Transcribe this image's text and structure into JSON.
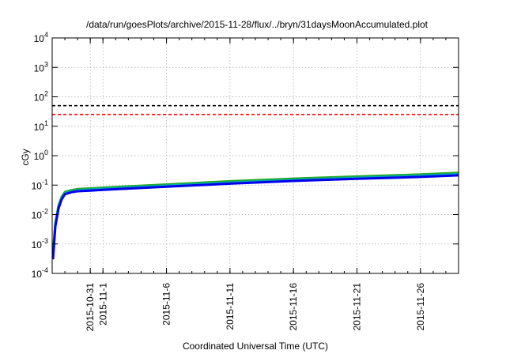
{
  "chart_data": {
    "type": "line",
    "title": "/data/run/goesPlots/archive/2015-11-28/flux/../bryn/31daysMoonAccumulated.plot",
    "xlabel": "Coordinated Universal Time (UTC)",
    "ylabel": "cGy",
    "yscale": "log",
    "ylim": [
      0.0001,
      10000
    ],
    "xlim": [
      "2015-10-28",
      "2015-11-29"
    ],
    "grid": true,
    "y_ticks": [
      {
        "value": 0.0001,
        "base": "10",
        "exp": "-4"
      },
      {
        "value": 0.001,
        "base": "10",
        "exp": "-3"
      },
      {
        "value": 0.01,
        "base": "10",
        "exp": "-2"
      },
      {
        "value": 0.1,
        "base": "10",
        "exp": "-1"
      },
      {
        "value": 1,
        "base": "10",
        "exp": "0"
      },
      {
        "value": 10,
        "base": "10",
        "exp": "1"
      },
      {
        "value": 100,
        "base": "10",
        "exp": "2"
      },
      {
        "value": 1000,
        "base": "10",
        "exp": "3"
      },
      {
        "value": 10000,
        "base": "10",
        "exp": "4"
      }
    ],
    "x_ticks": [
      "2015-10-31",
      "2015-11-1",
      "2015-11-6",
      "2015-11-11",
      "2015-11-16",
      "2015-11-21",
      "2015-11-26"
    ],
    "reference_lines": [
      {
        "y": 50,
        "color": "#000000",
        "style": "dashed"
      },
      {
        "y": 25,
        "color": "#ff0000",
        "style": "dashed"
      }
    ],
    "series": [
      {
        "color": "#22aa22",
        "x": [
          "2015-10-28",
          "2015-10-28",
          "2015-10-28",
          "2015-10-28",
          "2015-10-29",
          "2015-10-29",
          "2015-10-30",
          "2015-10-31",
          "2015-11-1",
          "2015-11-6",
          "2015-11-11",
          "2015-11-16",
          "2015-11-21",
          "2015-11-26",
          "2015-11-29"
        ],
        "y": [
          0.0005,
          0.005,
          0.02,
          0.04,
          0.058,
          0.067,
          0.073,
          0.077,
          0.082,
          0.105,
          0.135,
          0.165,
          0.195,
          0.23,
          0.26
        ]
      },
      {
        "color": "#00aaaa",
        "x": [
          "2015-10-28",
          "2015-10-28",
          "2015-10-28",
          "2015-10-28",
          "2015-10-29",
          "2015-10-29",
          "2015-10-30",
          "2015-10-31",
          "2015-11-1",
          "2015-11-6",
          "2015-11-11",
          "2015-11-16",
          "2015-11-21",
          "2015-11-26",
          "2015-11-29"
        ],
        "y": [
          0.0004,
          0.0045,
          0.018,
          0.036,
          0.053,
          0.062,
          0.067,
          0.071,
          0.075,
          0.096,
          0.122,
          0.15,
          0.177,
          0.21,
          0.235
        ]
      },
      {
        "color": "#0000ee",
        "x": [
          "2015-10-28",
          "2015-10-28",
          "2015-10-28",
          "2015-10-28",
          "2015-10-29",
          "2015-10-29",
          "2015-10-30",
          "2015-10-31",
          "2015-11-1",
          "2015-11-6",
          "2015-11-11",
          "2015-11-16",
          "2015-11-21",
          "2015-11-26",
          "2015-11-29"
        ],
        "y": [
          0.0003,
          0.004,
          0.016,
          0.033,
          0.049,
          0.057,
          0.062,
          0.065,
          0.069,
          0.088,
          0.112,
          0.138,
          0.163,
          0.19,
          0.215
        ]
      }
    ]
  }
}
